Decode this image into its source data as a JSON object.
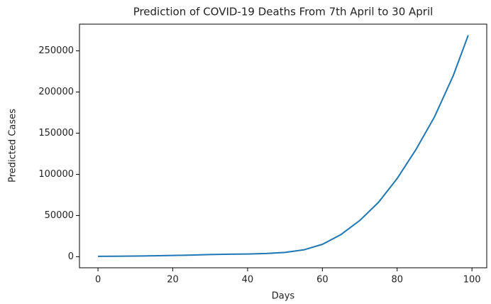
{
  "chart_data": {
    "type": "line",
    "title": "Prediction of COVID-19 Deaths From 7th April to 30 April",
    "xlabel": "Days",
    "ylabel": "Predicted Cases",
    "x": [
      0,
      5,
      10,
      15,
      20,
      25,
      30,
      35,
      40,
      45,
      50,
      55,
      60,
      65,
      70,
      75,
      80,
      85,
      90,
      95,
      99
    ],
    "series": [
      {
        "name": "Predicted Cases",
        "color": "#1f77b4",
        "values": [
          500,
          600,
          800,
          1100,
          1500,
          2000,
          2600,
          3000,
          3300,
          3900,
          5200,
          8300,
          15000,
          27000,
          44000,
          66000,
          95000,
          130000,
          170000,
          220000,
          269000
        ]
      }
    ],
    "xlim": [
      -4.95,
      103.95
    ],
    "xticks": [
      0,
      20,
      40,
      60,
      80,
      100
    ],
    "ylim": [
      -13450,
      282450
    ],
    "yticks": [
      0,
      50000,
      100000,
      150000,
      200000,
      250000
    ],
    "grid": false
  }
}
